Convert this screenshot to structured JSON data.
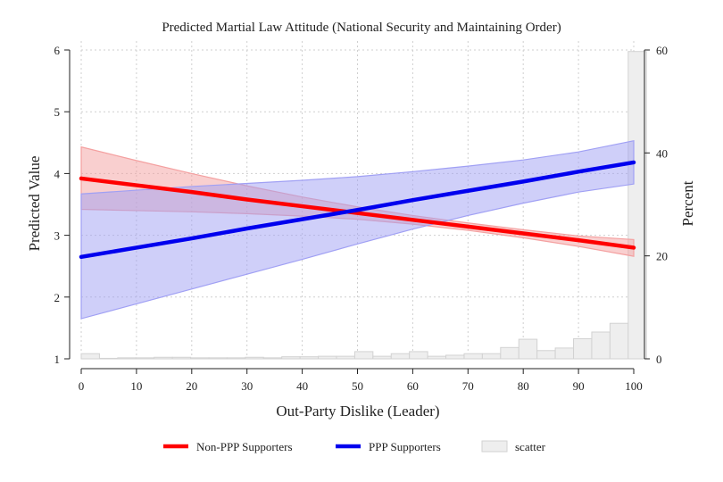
{
  "chart_data": {
    "type": "line",
    "title": "Predicted Martial Law Attitude (National Security and Maintaining Order)",
    "xlabel": "Out-Party Dislike (Leader)",
    "ylabel": "Predicted Value",
    "y2label": "Percent",
    "xlim": [
      0,
      100
    ],
    "ylim": [
      1,
      6
    ],
    "y2lim": [
      0,
      60
    ],
    "x_ticks": [
      0,
      10,
      20,
      30,
      40,
      50,
      60,
      70,
      80,
      90,
      100
    ],
    "y_ticks": [
      1,
      2,
      3,
      4,
      5,
      6
    ],
    "y2_ticks": [
      0,
      20,
      40,
      60
    ],
    "grid": true,
    "legend_position": "bottom",
    "series": [
      {
        "name": "Non-PPP Supporters",
        "color": "#ff0000",
        "band_color": "#f4a0a0",
        "x": [
          0,
          10,
          20,
          30,
          40,
          50,
          60,
          70,
          80,
          90,
          100
        ],
        "y": [
          3.92,
          3.81,
          3.7,
          3.58,
          3.47,
          3.36,
          3.25,
          3.14,
          3.03,
          2.92,
          2.8
        ],
        "upper": [
          4.43,
          4.21,
          4.0,
          3.8,
          3.62,
          3.46,
          3.32,
          3.2,
          3.09,
          2.99,
          2.93
        ],
        "lower": [
          3.42,
          3.4,
          3.38,
          3.35,
          3.31,
          3.26,
          3.18,
          3.08,
          2.96,
          2.82,
          2.66
        ]
      },
      {
        "name": "PPP Supporters",
        "color": "#0000ee",
        "band_color": "#a0a0f4",
        "x": [
          0,
          10,
          20,
          30,
          40,
          50,
          60,
          70,
          80,
          90,
          100
        ],
        "y": [
          2.65,
          2.8,
          2.95,
          3.11,
          3.26,
          3.41,
          3.57,
          3.72,
          3.87,
          4.03,
          4.18
        ],
        "upper": [
          3.67,
          3.73,
          3.79,
          3.84,
          3.89,
          3.95,
          4.03,
          4.12,
          4.22,
          4.35,
          4.53
        ],
        "lower": [
          1.65,
          1.89,
          2.13,
          2.37,
          2.61,
          2.86,
          3.1,
          3.32,
          3.52,
          3.7,
          3.83
        ]
      }
    ],
    "histogram": {
      "name": "scatter",
      "color": "#eeeeee",
      "bins": [
        {
          "start": 0,
          "end": 3.3,
          "percent": 1.0
        },
        {
          "start": 3.3,
          "end": 6.6,
          "percent": 0.1
        },
        {
          "start": 6.6,
          "end": 9.9,
          "percent": 0.2
        },
        {
          "start": 9.9,
          "end": 13.2,
          "percent": 0.2
        },
        {
          "start": 13.2,
          "end": 16.5,
          "percent": 0.3
        },
        {
          "start": 16.5,
          "end": 19.8,
          "percent": 0.3
        },
        {
          "start": 19.8,
          "end": 23.1,
          "percent": 0.2
        },
        {
          "start": 23.1,
          "end": 26.4,
          "percent": 0.2
        },
        {
          "start": 26.4,
          "end": 29.7,
          "percent": 0.2
        },
        {
          "start": 29.7,
          "end": 33.0,
          "percent": 0.3
        },
        {
          "start": 33.0,
          "end": 36.3,
          "percent": 0.2
        },
        {
          "start": 36.3,
          "end": 39.6,
          "percent": 0.4
        },
        {
          "start": 39.6,
          "end": 42.9,
          "percent": 0.4
        },
        {
          "start": 42.9,
          "end": 46.2,
          "percent": 0.5
        },
        {
          "start": 46.2,
          "end": 49.5,
          "percent": 0.5
        },
        {
          "start": 49.5,
          "end": 52.8,
          "percent": 1.4
        },
        {
          "start": 52.8,
          "end": 56.1,
          "percent": 0.5
        },
        {
          "start": 56.1,
          "end": 59.4,
          "percent": 1.0
        },
        {
          "start": 59.4,
          "end": 62.7,
          "percent": 1.4
        },
        {
          "start": 62.7,
          "end": 66.0,
          "percent": 0.5
        },
        {
          "start": 66.0,
          "end": 69.3,
          "percent": 0.7
        },
        {
          "start": 69.3,
          "end": 72.6,
          "percent": 1.0
        },
        {
          "start": 72.6,
          "end": 75.9,
          "percent": 1.0
        },
        {
          "start": 75.9,
          "end": 79.2,
          "percent": 2.2
        },
        {
          "start": 79.2,
          "end": 82.5,
          "percent": 3.8
        },
        {
          "start": 82.5,
          "end": 85.8,
          "percent": 1.6
        },
        {
          "start": 85.8,
          "end": 89.1,
          "percent": 2.1
        },
        {
          "start": 89.1,
          "end": 92.4,
          "percent": 3.9
        },
        {
          "start": 92.4,
          "end": 95.7,
          "percent": 5.2
        },
        {
          "start": 95.7,
          "end": 99.0,
          "percent": 6.9
        },
        {
          "start": 99.0,
          "end": 102.3,
          "percent": 59.7
        }
      ]
    }
  }
}
